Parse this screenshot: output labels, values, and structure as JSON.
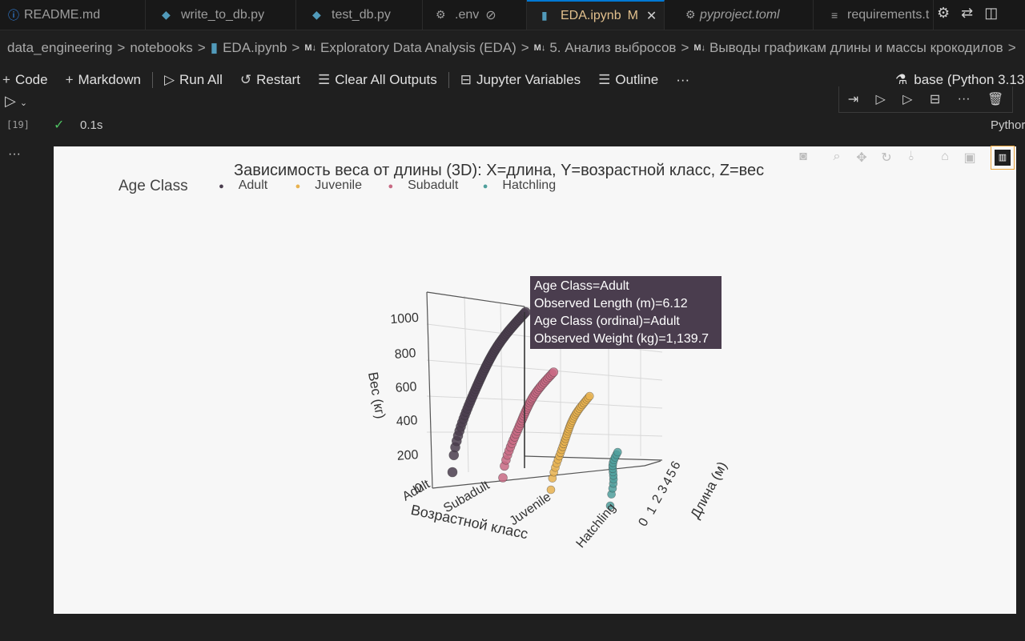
{
  "tabs": [
    {
      "label": "README.md",
      "icon": "info-icon",
      "icon_color": "#3794ff",
      "modified": ""
    },
    {
      "label": "write_to_db.py",
      "icon": "python-icon",
      "icon_color": "#519aba",
      "modified": ""
    },
    {
      "label": "test_db.py",
      "icon": "python-icon",
      "icon_color": "#519aba",
      "modified": ""
    },
    {
      "label": ".env",
      "icon": "gear-icon",
      "icon_color": "#9d9d9d",
      "modified": "⊘"
    },
    {
      "label": "EDA.ipynb",
      "icon": "notebook-icon",
      "icon_color": "#519aba",
      "modified": "M",
      "close": "✕"
    },
    {
      "label": "pyproject.toml",
      "icon": "gear-icon",
      "icon_color": "#9d9d9d",
      "modified": ""
    },
    {
      "label": "requirements.t",
      "icon": "lines-icon",
      "icon_color": "#9d9d9d",
      "modified": ""
    }
  ],
  "breadcrumb": {
    "items": [
      "data_engineering",
      "notebooks",
      "EDA.ipynb",
      "Exploratory Data Analysis (EDA)",
      "5. Анализ выбросов",
      "Выводы графикам длины и массы крокодилов"
    ],
    "md_badge": "M↓",
    "separator": ">"
  },
  "toolbar": {
    "code_label": "Code",
    "markdown_label": "Markdown",
    "run_all_label": "Run All",
    "restart_label": "Restart",
    "clear_label": "Clear All Outputs",
    "variables_label": "Jupyter Variables",
    "outline_label": "Outline",
    "more_label": "···",
    "kernel_label": "base (Python 3.13"
  },
  "cell": {
    "exec_count": "[19]",
    "status_check": "✓",
    "time": "0.1s",
    "language": "Pythor",
    "more": "···"
  },
  "plot": {
    "title": "Зависимость веса от длины (3D): X=длина, Y=возрастной класс, Z=вес",
    "legend_title": "Age Class",
    "legend_items": [
      {
        "name": "Adult",
        "color": "#4a3d4e"
      },
      {
        "name": "Juvenile",
        "color": "#e8b24f"
      },
      {
        "name": "Subadult",
        "color": "#c86a84"
      },
      {
        "name": "Hatchling",
        "color": "#4f9f9c"
      }
    ],
    "tooltip": [
      "Age Class=Adult",
      "Observed Length (m)=6.12",
      "Age Class (ordinal)=Adult",
      "Observed Weight (kg)=1,139.7"
    ],
    "z_label": "Вес (кг)",
    "z_ticks": [
      "0",
      "200",
      "400",
      "600",
      "800",
      "1000"
    ],
    "y_label": "Возрастной класс",
    "y_ticks": [
      "Adult",
      "Subadult",
      "Juvenile",
      "Hatchling"
    ],
    "x_label": "Длина (м)",
    "x_ticks": [
      "0",
      "1",
      "2",
      "3",
      "4",
      "5",
      "6"
    ],
    "tooltip_bg": "#4a3d4e"
  },
  "modebar": [
    "camera-icon",
    "zoom-icon",
    "pan-icon",
    "orbit-icon",
    "turntable-icon",
    "home-icon",
    "camera-view-icon",
    "plotly-logo-icon"
  ]
}
